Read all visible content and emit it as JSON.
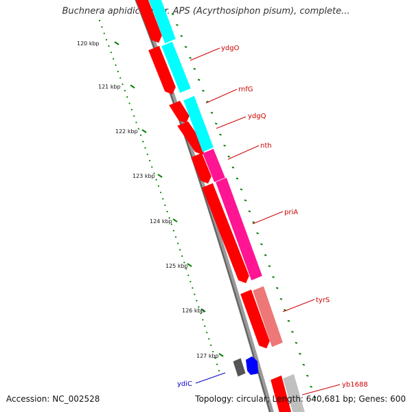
{
  "title": "Buchnera aphidicola str. APS (Acyrthosiphon pisum), complete...",
  "footer": {
    "accession": "Accession: NC_002528",
    "summary": "Topology: circular; Length: 640,681 bp; Genes: 600"
  },
  "colors": {
    "backbone": "#808080",
    "cds_red": "#ff0000",
    "cyan": "#00ffff",
    "magenta": "#ff1493",
    "salmon": "#ee7777",
    "gray": "#c0c0c0",
    "dark_gray": "#555555",
    "blue_gene": "#0000ff",
    "tick_green": "#008000",
    "label_red": "#cc0000",
    "label_blue": "#0000cc"
  },
  "ruler_ticks": [
    "120 kbp",
    "121 kbp",
    "122 kbp",
    "123 kbp",
    "124 kbp",
    "125 kbp",
    "126 kbp",
    "127 kbp"
  ],
  "gene_labels": [
    {
      "text": "ydgO",
      "color": "#cc0000"
    },
    {
      "text": "rnfG",
      "color": "#cc0000"
    },
    {
      "text": "ydgQ",
      "color": "#cc0000"
    },
    {
      "text": "nth",
      "color": "#cc0000"
    },
    {
      "text": "priA",
      "color": "#cc0000"
    },
    {
      "text": "tyrS",
      "color": "#cc0000"
    },
    {
      "text": "ydiC",
      "color": "#0000cc"
    },
    {
      "text": "yb1688",
      "color": "#cc0000"
    }
  ]
}
